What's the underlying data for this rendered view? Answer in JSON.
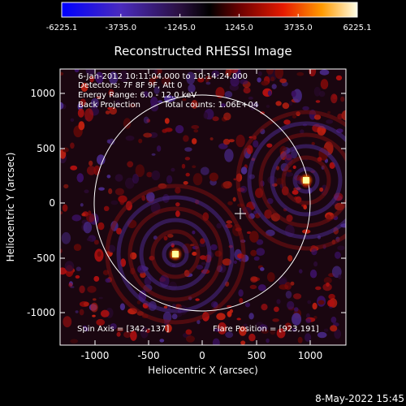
{
  "colorbar": {
    "ticks": [
      "-6225.1",
      "-3735.0",
      "-1245.0",
      "1245.0",
      "3735.0",
      "6225.1"
    ]
  },
  "title": "Reconstructed RHESSI Image",
  "info": {
    "time_range": "6-Jan-2012 10:11:04.000 to 10:14:24.000",
    "detectors": "Detectors: 7F 8F 9F, Att 0",
    "energy": "Energy Range: 6.0 - 12.0 keV",
    "method": "Back Projection",
    "counts": "Total counts: 1.06E+04",
    "spin_axis": "Spin Axis = [342,-137]",
    "flare_position": "Flare Position = [923,191]"
  },
  "axes": {
    "xlabel": "Heliocentric X (arcsec)",
    "ylabel": "Heliocentric Y (arcsec)",
    "xticks": [
      "-1000",
      "-500",
      "0",
      "500",
      "1000"
    ],
    "yticks": [
      "1000",
      "500",
      "0",
      "-500",
      "-1000"
    ]
  },
  "timestamp": "8-May-2022 15:45",
  "colors": {
    "background": "#000000",
    "limb": "#ffffff"
  }
}
